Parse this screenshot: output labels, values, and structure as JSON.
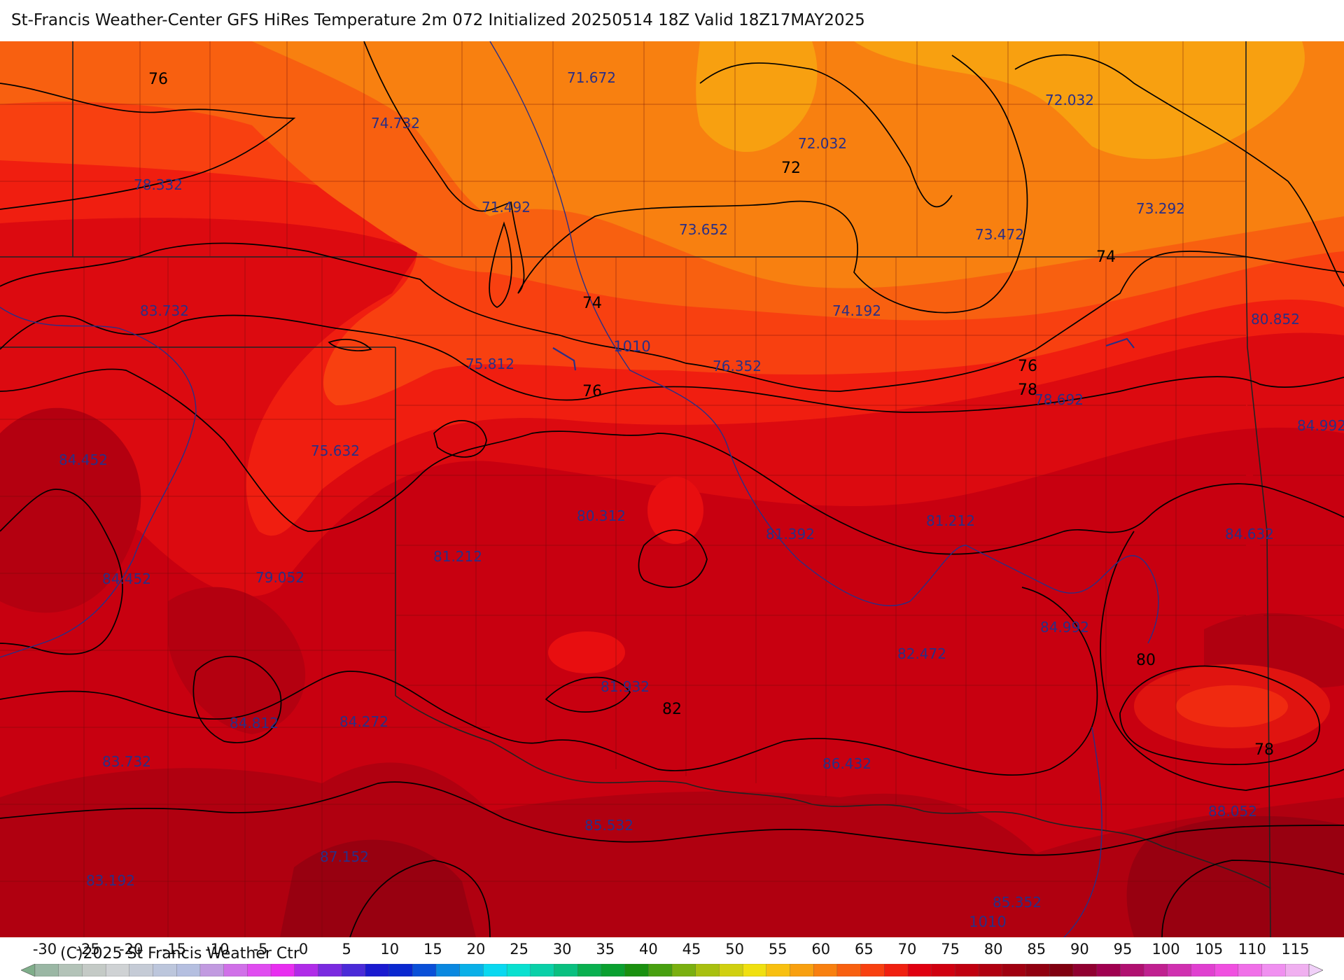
{
  "title": "St-Francis Weather-Center GFS HiRes Temperature 2m  072 Initialized 20250514 18Z Valid 18Z17MAY2025",
  "copyright": "(C)2025 St Francis Weather Ctr",
  "legend": {
    "ticks": [
      "-30",
      "-25",
      "-20",
      "-15",
      "-10",
      "-5",
      "0",
      "5",
      "10",
      "15",
      "20",
      "25",
      "30",
      "35",
      "40",
      "45",
      "50",
      "55",
      "60",
      "65",
      "70",
      "75",
      "80",
      "85",
      "90",
      "95",
      "100",
      "105",
      "110",
      "115"
    ],
    "colors": [
      "#7fae8a",
      "#9ab7a4",
      "#b3c3b8",
      "#c4cac6",
      "#cfd2d4",
      "#c5cbd6",
      "#bcc6dc",
      "#b5bfe0",
      "#c19ae0",
      "#d070e8",
      "#e04cf0",
      "#e82ef0",
      "#b02ce8",
      "#7a2ae0",
      "#4a2ad8",
      "#1a1ad0",
      "#0a28d0",
      "#0a50d8",
      "#0a88e0",
      "#0ab0e8",
      "#0ad8f0",
      "#0ae0d0",
      "#0ad0a8",
      "#0ac080",
      "#0ab050",
      "#0aa030",
      "#1a9010",
      "#48a010",
      "#7ab010",
      "#a8c010",
      "#d0d010",
      "#f0e010",
      "#f8c010",
      "#f8a010",
      "#f88010",
      "#f86010",
      "#f84010",
      "#f02010",
      "#e00010",
      "#d00010",
      "#c00010",
      "#b00010",
      "#a00010",
      "#900010",
      "#800010",
      "#900030",
      "#a00050",
      "#b01070",
      "#c02090",
      "#d030b0",
      "#e040d0",
      "#f050e0",
      "#f070e8",
      "#f090f0",
      "#f0b0f0",
      "#f0d0f8"
    ]
  },
  "map": {
    "labels": [
      "76",
      "74.732",
      "71.672",
      "72.032",
      "72",
      "72.032",
      "78.332",
      "71.492",
      "73.652",
      "73.472",
      "73.292",
      "74",
      "83.732",
      "74",
      "74.192",
      "80.852",
      "1010",
      "75.812",
      "76.352",
      "76",
      "76",
      "78",
      "78.692",
      "84.992",
      "84.452",
      "75.632",
      "80.312",
      "81.392",
      "81.212",
      "84.632",
      "84.452",
      "79.052",
      "81.212",
      "84.992",
      "82.472",
      "80",
      "81.932",
      "82",
      "84.812",
      "84.272",
      "83.732",
      "86.432",
      "78",
      "88.052",
      "85.532",
      "87.152",
      "83.192",
      "85.352",
      "1010"
    ]
  }
}
